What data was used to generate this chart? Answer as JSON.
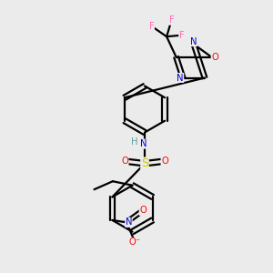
{
  "bg_color": "#ebebeb",
  "bond_color": "#000000",
  "atom_colors": {
    "N": "#0000cc",
    "O": "#ff0000",
    "S": "#cccc00",
    "F": "#ff69b4",
    "H": "#5f9ea0",
    "C": "#000000"
  }
}
